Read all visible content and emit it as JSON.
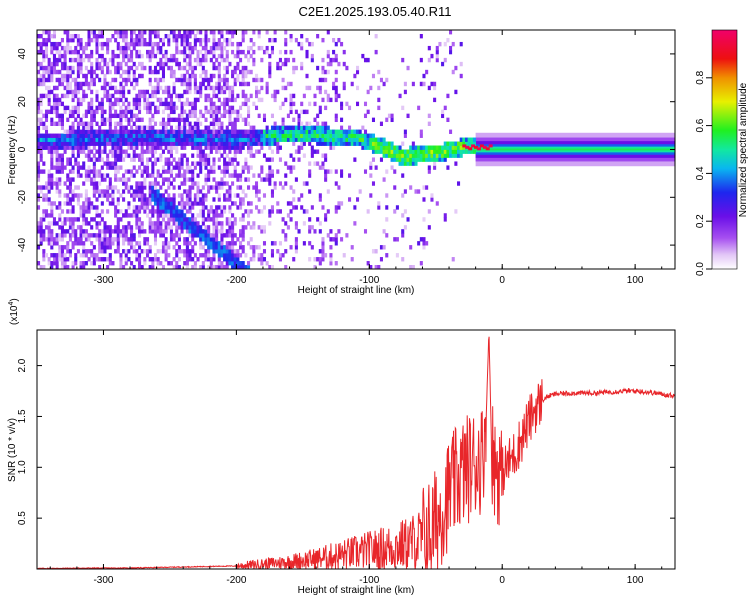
{
  "figure_title": "C2E1.2025.193.05.40.R11",
  "chart_data": [
    {
      "type": "heatmap",
      "xlabel": "Height of straight line (km)",
      "ylabel": "Frequency (Hz)",
      "xlim": [
        -350,
        130
      ],
      "ylim": [
        -50,
        50
      ],
      "xticks": [
        -300,
        -200,
        -100,
        0,
        100
      ],
      "yticks": [
        -40,
        -20,
        0,
        20,
        40
      ],
      "colorbar": {
        "label": "Normalized spectral amplitude",
        "range": [
          0.0,
          1.0
        ],
        "ticks": [
          0.0,
          0.2,
          0.4,
          0.6,
          0.8
        ],
        "tick_labels": [
          "0.0",
          "0.2",
          "0.4",
          "0.6",
          "0.8"
        ],
        "colormap": "white-purple-blue-cyan-green-yellow-red-magenta"
      },
      "ridge_center_hz": [
        {
          "x": -320,
          "y": 4
        },
        {
          "x": -295,
          "y": 5
        },
        {
          "x": -250,
          "y": 5
        },
        {
          "x": -200,
          "y": 4
        },
        {
          "x": -170,
          "y": 6
        },
        {
          "x": -140,
          "y": 6
        },
        {
          "x": -110,
          "y": 5
        },
        {
          "x": -90,
          "y": 1
        },
        {
          "x": -75,
          "y": -3
        },
        {
          "x": -60,
          "y": -2
        },
        {
          "x": -45,
          "y": -1
        },
        {
          "x": -30,
          "y": 1
        },
        {
          "x": -10,
          "y": 1
        },
        {
          "x": 20,
          "y": 0
        },
        {
          "x": 60,
          "y": 0
        },
        {
          "x": 100,
          "y": 0
        },
        {
          "x": 130,
          "y": 0
        }
      ],
      "features": [
        {
          "note": "diagonal branch",
          "x": [
            -260,
            -195
          ],
          "y": [
            -20,
            -50
          ],
          "amplitude": 0.4
        },
        {
          "note": "stable carrier line",
          "x": [
            -20,
            130
          ],
          "y": [
            0,
            0
          ],
          "amplitude": 0.55
        },
        {
          "note": "peak amplitude patches",
          "x": [
            -30,
            -10
          ],
          "y": [
            0,
            2
          ],
          "amplitude": 0.95
        }
      ],
      "grid": false
    },
    {
      "type": "line",
      "xlabel": "Height of straight line (km)",
      "ylabel": "SNR (10 * v/v)",
      "y_multiplier_label": "(x10",
      "y_multiplier_exp": "4",
      "y_multiplier_close": ")",
      "xlim": [
        -350,
        130
      ],
      "ylim": [
        0,
        2.35
      ],
      "xticks": [
        -300,
        -200,
        -100,
        0,
        100
      ],
      "yticks": [
        0.5,
        1.0,
        1.5,
        2.0
      ],
      "ytick_labels": [
        "0.5",
        "1.0",
        "1.5",
        "2.0"
      ],
      "color": "#e8262a",
      "series": [
        {
          "x": [
            -350,
            -320,
            -280,
            -240,
            -200,
            -180,
            -160,
            -140,
            -120,
            -110,
            -100,
            -90,
            -80,
            -70,
            -60,
            -55,
            -50,
            -45,
            -40,
            -35,
            -30,
            -25,
            -20,
            -15,
            -12,
            -10,
            -8,
            -5,
            0,
            5,
            10,
            15,
            20,
            25,
            30,
            35,
            40,
            50,
            60,
            70,
            80,
            90,
            100,
            110,
            120,
            130
          ],
          "y": [
            0.005,
            0.008,
            0.01,
            0.02,
            0.03,
            0.05,
            0.07,
            0.1,
            0.14,
            0.16,
            0.18,
            0.2,
            0.22,
            0.25,
            0.3,
            0.35,
            0.45,
            0.6,
            0.75,
            0.85,
            0.95,
            1.0,
            1.05,
            1.1,
            1.5,
            2.35,
            1.2,
            1.0,
            0.95,
            1.05,
            1.15,
            1.3,
            1.45,
            1.58,
            1.66,
            1.7,
            1.72,
            1.73,
            1.73,
            1.73,
            1.74,
            1.75,
            1.75,
            1.74,
            1.72,
            1.7
          ]
        }
      ],
      "grid": false
    }
  ]
}
